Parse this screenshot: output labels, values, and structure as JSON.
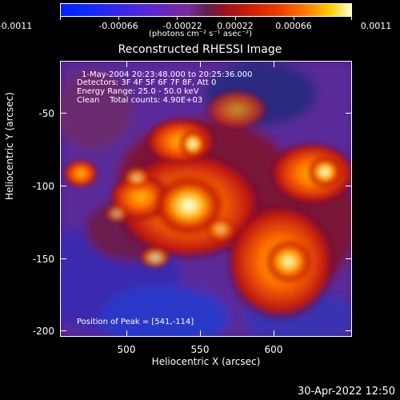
{
  "colorbar": {
    "ticks": [
      "-0.0011",
      "-0.00066",
      "-0.00022",
      "0.00022",
      "0.00066",
      "0.0011"
    ],
    "units": "(photons cm⁻² s⁻¹ asec⁻²)"
  },
  "title": "Reconstructed RHESSI Image",
  "info": {
    "time_range": "1-May-2004 20:23:48.000 to 20:25:36.000",
    "detectors": "Detectors: 3F 4F 5F 6F 7F 8F, Att 0",
    "energy": "Energy Range: 25.0 - 50.0 keV",
    "clean": "Clean    Total counts: 4.90E+03",
    "peak": "Position of Peak = [541,-114]"
  },
  "axes": {
    "xlabel": "Heliocentric X (arcsec)",
    "ylabel": "Heliocentric Y (arcsec)",
    "xticks": [
      "500",
      "550",
      "600"
    ],
    "yticks": [
      "-50",
      "-100",
      "-150",
      "-200"
    ]
  },
  "timestamp": "30-Apr-2022 12:50",
  "colors": {
    "background": "#000000",
    "foreground": "#ffffff"
  }
}
